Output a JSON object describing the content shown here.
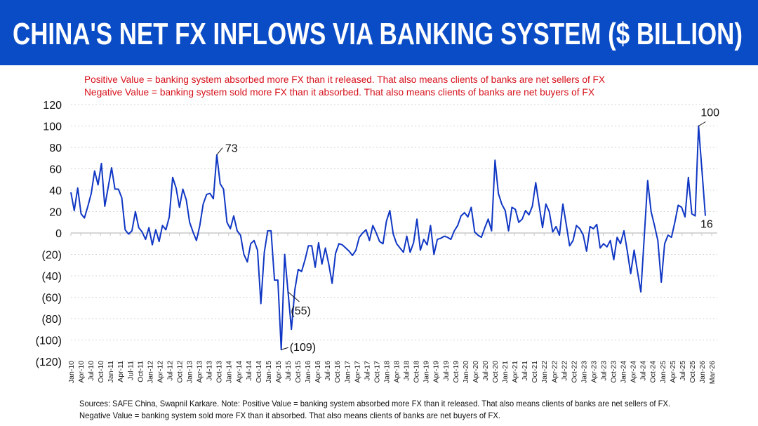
{
  "header": {
    "title": "CHINA'S NET FX INFLOWS VIA BANKING SYSTEM ($ BILLION)",
    "background": "#0a4cc6"
  },
  "notes": [
    "Positive Value = banking system absorbed more FX than it released. That also means clients of banks are net sellers of FX",
    "Negative Value = banking system sold more FX than it absorbed. That also means clients of banks are net buyers of FX"
  ],
  "footer": [
    "Sources: SAFE China, Swapnil Karkare. Note: Positive Value = banking system absorbed more FX than it released. That also means clients of banks are net sellers of FX.",
    "Negative Value = banking system sold more FX than it absorbed. That also means clients of banks are net buyers of FX."
  ],
  "chart_data": {
    "type": "line",
    "title": "CHINA'S NET FX INFLOWS VIA BANKING SYSTEM ($ BILLION)",
    "xlabel": "",
    "ylabel": "",
    "ylim": [
      -120,
      120
    ],
    "grid": true,
    "line_color": "#1037c4",
    "y_ticks": [
      {
        "value": 120,
        "label": "120"
      },
      {
        "value": 100,
        "label": "100"
      },
      {
        "value": 80,
        "label": "80"
      },
      {
        "value": 60,
        "label": "60"
      },
      {
        "value": 40,
        "label": "40"
      },
      {
        "value": 20,
        "label": "20"
      },
      {
        "value": 0,
        "label": "0"
      },
      {
        "value": -20,
        "label": "(20)"
      },
      {
        "value": -40,
        "label": "(40)"
      },
      {
        "value": -60,
        "label": "(60)"
      },
      {
        "value": -80,
        "label": "(80)"
      },
      {
        "value": -100,
        "label": "(100)"
      },
      {
        "value": -120,
        "label": "(120)"
      }
    ],
    "x_tick_labels": [
      "Jan-10",
      "Apr-10",
      "Jul-10",
      "Oct-10",
      "Jan-11",
      "Apr-11",
      "Jul-11",
      "Oct-11",
      "Jan-12",
      "Apr-12",
      "Jul-12",
      "Oct-12",
      "Jan-13",
      "Apr-13",
      "Jul-13",
      "Oct-13",
      "Jan-14",
      "Apr-14",
      "Jul-14",
      "Oct-14",
      "Jan-15",
      "Apr-15",
      "Jul-15",
      "Oct-15",
      "Jan-16",
      "Apr-16",
      "Jul-16",
      "Oct-16",
      "Jan-17",
      "Apr-17",
      "Jul-17",
      "Oct-17",
      "Jan-18",
      "Apr-18",
      "Jul-18",
      "Oct-18",
      "Jan-19",
      "Apr-19",
      "Jul-19",
      "Oct-19",
      "Jan-20",
      "Apr-20",
      "Jul-20",
      "Oct-20",
      "Jan-21",
      "Apr-21",
      "Jul-21",
      "Oct-21",
      "Jan-22",
      "Apr-22",
      "Jul-22",
      "Oct-22",
      "Jan-23",
      "Apr-23",
      "Jul-23",
      "Oct-23",
      "Jan-24",
      "Apr-24",
      "Jul-24",
      "Oct-24",
      "Jan-25",
      "Apr-25",
      "Jul-25",
      "Oct-25",
      "Jan-26",
      "Mar-26"
    ],
    "values": [
      38,
      21,
      42,
      18,
      14,
      25,
      37,
      58,
      45,
      65,
      25,
      43,
      61,
      41,
      41,
      33,
      3,
      -1,
      2,
      20,
      5,
      1,
      -6,
      5,
      -11,
      3,
      -8,
      7,
      3,
      15,
      52,
      42,
      24,
      41,
      31,
      10,
      1,
      -7,
      7,
      27,
      36,
      37,
      32,
      73,
      46,
      41,
      10,
      4,
      16,
      2,
      -2,
      -20,
      -27,
      -10,
      -7,
      -16,
      -66,
      -18,
      2,
      2,
      -44,
      -44,
      -109,
      -20,
      -55,
      -90,
      -53,
      -34,
      -36,
      -25,
      -12,
      -12,
      -32,
      -9,
      -29,
      -14,
      -29,
      -47,
      -19,
      -10,
      -11,
      -14,
      -17,
      -21,
      -16,
      -4,
      0,
      3,
      -7,
      7,
      0,
      -8,
      -10,
      11,
      21,
      -1,
      -10,
      -14,
      -18,
      -3,
      -18,
      -9,
      13,
      -16,
      -6,
      -11,
      7,
      -20,
      -6,
      -5,
      -3,
      -4,
      -6,
      2,
      7,
      16,
      19,
      15,
      24,
      1,
      -2,
      -4,
      5,
      13,
      2,
      68,
      37,
      27,
      21,
      2,
      24,
      22,
      10,
      13,
      21,
      17,
      25,
      47,
      26,
      5,
      27,
      20,
      1,
      6,
      -2,
      27,
      8,
      -12,
      -7,
      7,
      4,
      -2,
      -17,
      6,
      4,
      8,
      -14,
      -10,
      -13,
      -7,
      -25,
      -4,
      -10,
      2,
      -17,
      -38,
      -16,
      -36,
      -55,
      -3,
      49,
      20,
      7,
      -7,
      -46,
      -10,
      -2,
      -4,
      10,
      26,
      24,
      15,
      52,
      18,
      16,
      100,
      58,
      16
    ],
    "annotations": [
      {
        "label": "73",
        "value": 73
      },
      {
        "label": "(109)",
        "value": -109
      },
      {
        "label": "(55)",
        "value": -55
      },
      {
        "label": "100",
        "value": 100
      },
      {
        "label": "16",
        "value": 16
      }
    ]
  }
}
